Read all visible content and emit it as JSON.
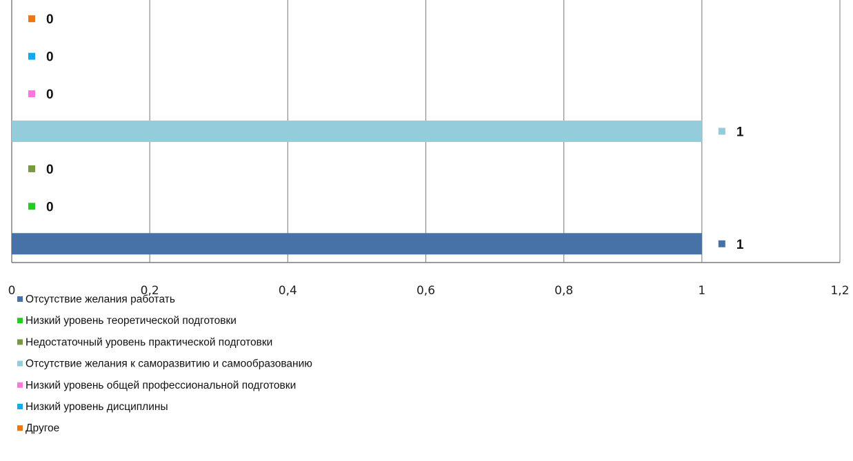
{
  "chart_data": {
    "type": "bar",
    "orientation": "horizontal",
    "xlim": [
      0,
      1.2
    ],
    "x_ticks": [
      "0",
      "0,2",
      "0,4",
      "0,6",
      "0,8",
      "1",
      "1,2"
    ],
    "x_tick_values": [
      0,
      0.2,
      0.4,
      0.6,
      0.8,
      1,
      1.2
    ],
    "grid": true,
    "legend_position": "bottom-left",
    "title": "",
    "xlabel": "",
    "ylabel": "",
    "series": [
      {
        "name": "Отсутствие желания работать",
        "value": 1,
        "label": "1",
        "color": "#4672A8"
      },
      {
        "name": "Низкий уровень теоретической подготовки",
        "value": 0,
        "label": "0",
        "color": "#22CC22"
      },
      {
        "name": "Недостаточный уровень практической подготовки",
        "value": 0,
        "label": "0",
        "color": "#779944"
      },
      {
        "name": "Отсутствие желания к саморазвитию и самообразованию",
        "value": 1,
        "label": "1",
        "color": "#94CCDC"
      },
      {
        "name": "Низкий уровень общей профессиональной подготовки",
        "value": 0,
        "label": "0",
        "color": "#FF77DD"
      },
      {
        "name": "Низкий уровень дисциплины",
        "value": 0,
        "label": "0",
        "color": "#11AAEE"
      },
      {
        "name": "Другое",
        "value": 0,
        "label": "0",
        "color": "#EE7711"
      }
    ]
  }
}
